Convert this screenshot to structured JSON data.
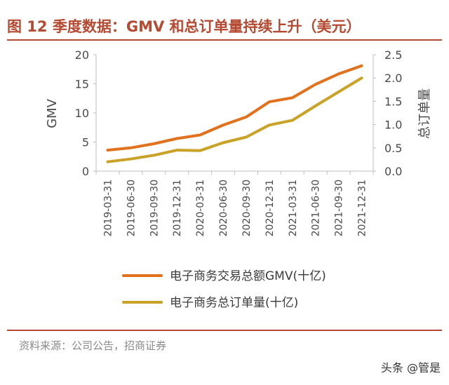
{
  "figure": {
    "title": "图 12 季度数据：GMV 和总订单量持续上升（美元）",
    "source": "资料来源：公司公告，招商证券",
    "watermark": "头条 @管是"
  },
  "colors": {
    "accent": "#b54a32",
    "series_gmv": "#e2711d",
    "series_orders": "#c9a227",
    "axis": "#bfbfbf",
    "text": "#4a4a4a"
  },
  "chart_data": {
    "type": "line",
    "categories": [
      "2019-03-31",
      "2019-06-30",
      "2019-09-30",
      "2019-12-31",
      "2020-03-31",
      "2020-06-30",
      "2020-09-30",
      "2020-12-31",
      "2021-03-31",
      "2021-06-30",
      "2021-09-30",
      "2021-12-31"
    ],
    "series": [
      {
        "name": "电子商务交易总额GMV(十亿)",
        "axis": "left",
        "color": "#e2711d",
        "values": [
          3.6,
          4.0,
          4.7,
          5.6,
          6.2,
          7.9,
          9.3,
          11.9,
          12.6,
          14.9,
          16.7,
          18.1
        ]
      },
      {
        "name": "电子商务总订单量(十亿)",
        "axis": "right",
        "color": "#c9a227",
        "values": [
          0.2,
          0.26,
          0.34,
          0.45,
          0.44,
          0.61,
          0.73,
          0.99,
          1.09,
          1.4,
          1.7,
          2.0
        ]
      }
    ],
    "y_left": {
      "label": "GMV",
      "ylim": [
        0,
        20
      ],
      "ticks": [
        0,
        5,
        10,
        15,
        20
      ]
    },
    "y_right": {
      "label": "总订单量",
      "ylim": [
        0,
        2.5
      ],
      "ticks": [
        "0.0",
        "0.5",
        "1.0",
        "1.5",
        "2.0",
        "2.5"
      ]
    },
    "grid": false,
    "legend_position": "bottom"
  }
}
